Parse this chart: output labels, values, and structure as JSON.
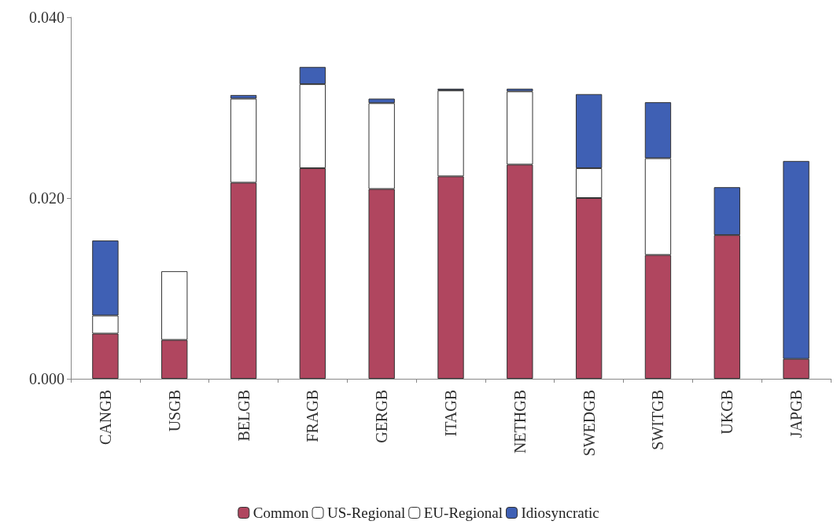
{
  "chart_data": {
    "type": "bar",
    "stacked": true,
    "categories": [
      "CANGB",
      "USGB",
      "BELGB",
      "FRAGB",
      "GERGB",
      "ITAGB",
      "NETHGB",
      "SWEDGB",
      "SWITGB",
      "UKGB",
      "JAPGB"
    ],
    "series": [
      {
        "name": "Common",
        "color": "#b0465f",
        "values": [
          0.005,
          0.0043,
          0.0217,
          0.0233,
          0.021,
          0.0224,
          0.0237,
          0.02,
          0.0137,
          0.0159,
          0.0022
        ]
      },
      {
        "name": "US-Regional",
        "color": "#ffffff",
        "values": [
          0.002,
          0.0076,
          null,
          null,
          null,
          null,
          null,
          null,
          null,
          null,
          null
        ]
      },
      {
        "name": "EU-Regional",
        "color": "#ffffff",
        "values": [
          null,
          null,
          0.0093,
          0.0093,
          0.0095,
          0.0095,
          0.0081,
          0.0033,
          0.0107,
          null,
          null
        ]
      },
      {
        "name": "Idiosyncratic",
        "color": "#3f60b4",
        "values": [
          0.0083,
          null,
          0.0004,
          0.0019,
          0.0005,
          0.0002,
          0.0003,
          0.0082,
          0.0062,
          0.0053,
          0.0219
        ]
      }
    ],
    "ylim": [
      0,
      0.04
    ],
    "yticks": [
      {
        "value": 0,
        "label": "0.000"
      },
      {
        "value": 0.02,
        "label": "0.020"
      },
      {
        "value": 0.04,
        "label": "0.040"
      }
    ],
    "grid": false,
    "legend": "bottom"
  }
}
